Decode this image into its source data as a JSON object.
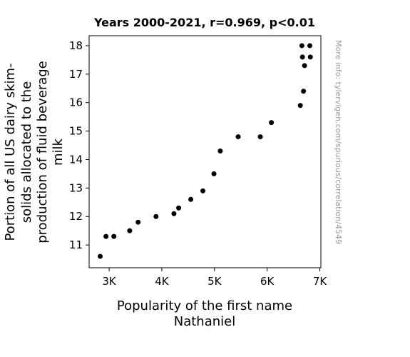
{
  "chart_data": {
    "type": "scatter",
    "title": "Years 2000-2021, r=0.969, p<0.01",
    "xlabel_lines": [
      "Popularity of the first name",
      "Nathaniel"
    ],
    "ylabel_lines": [
      "Portion of all US dairy skim-",
      "solids allocated to the",
      "production of fluid beverage",
      "milk"
    ],
    "watermark": "More info: tylervigen.com/spurious/correlation/4549",
    "xlim": [
      2620,
      7020
    ],
    "ylim": [
      10.2,
      18.35
    ],
    "x_ticks": [
      {
        "value": 3000,
        "label": "3K"
      },
      {
        "value": 4000,
        "label": "4K"
      },
      {
        "value": 5000,
        "label": "5K"
      },
      {
        "value": 6000,
        "label": "6K"
      },
      {
        "value": 7000,
        "label": "7K"
      }
    ],
    "y_ticks": [
      {
        "value": 11,
        "label": "11"
      },
      {
        "value": 12,
        "label": "12"
      },
      {
        "value": 13,
        "label": "13"
      },
      {
        "value": 14,
        "label": "14"
      },
      {
        "value": 15,
        "label": "15"
      },
      {
        "value": 16,
        "label": "16"
      },
      {
        "value": 17,
        "label": "17"
      },
      {
        "value": 18,
        "label": "18"
      }
    ],
    "grid": false,
    "marker_color": "#000000",
    "points": [
      {
        "x": 2830,
        "y": 10.6
      },
      {
        "x": 2940,
        "y": 11.3
      },
      {
        "x": 3090,
        "y": 11.3
      },
      {
        "x": 3390,
        "y": 11.5
      },
      {
        "x": 3550,
        "y": 11.8
      },
      {
        "x": 3890,
        "y": 12.0
      },
      {
        "x": 4230,
        "y": 12.1
      },
      {
        "x": 4320,
        "y": 12.3
      },
      {
        "x": 4550,
        "y": 12.6
      },
      {
        "x": 4780,
        "y": 12.9
      },
      {
        "x": 4990,
        "y": 13.5
      },
      {
        "x": 5110,
        "y": 14.3
      },
      {
        "x": 5450,
        "y": 14.8
      },
      {
        "x": 5870,
        "y": 14.8
      },
      {
        "x": 6080,
        "y": 15.3
      },
      {
        "x": 6630,
        "y": 15.9
      },
      {
        "x": 6690,
        "y": 16.4
      },
      {
        "x": 6710,
        "y": 17.3
      },
      {
        "x": 6670,
        "y": 17.6
      },
      {
        "x": 6820,
        "y": 17.6
      },
      {
        "x": 6660,
        "y": 18.0
      },
      {
        "x": 6810,
        "y": 18.0
      }
    ]
  }
}
